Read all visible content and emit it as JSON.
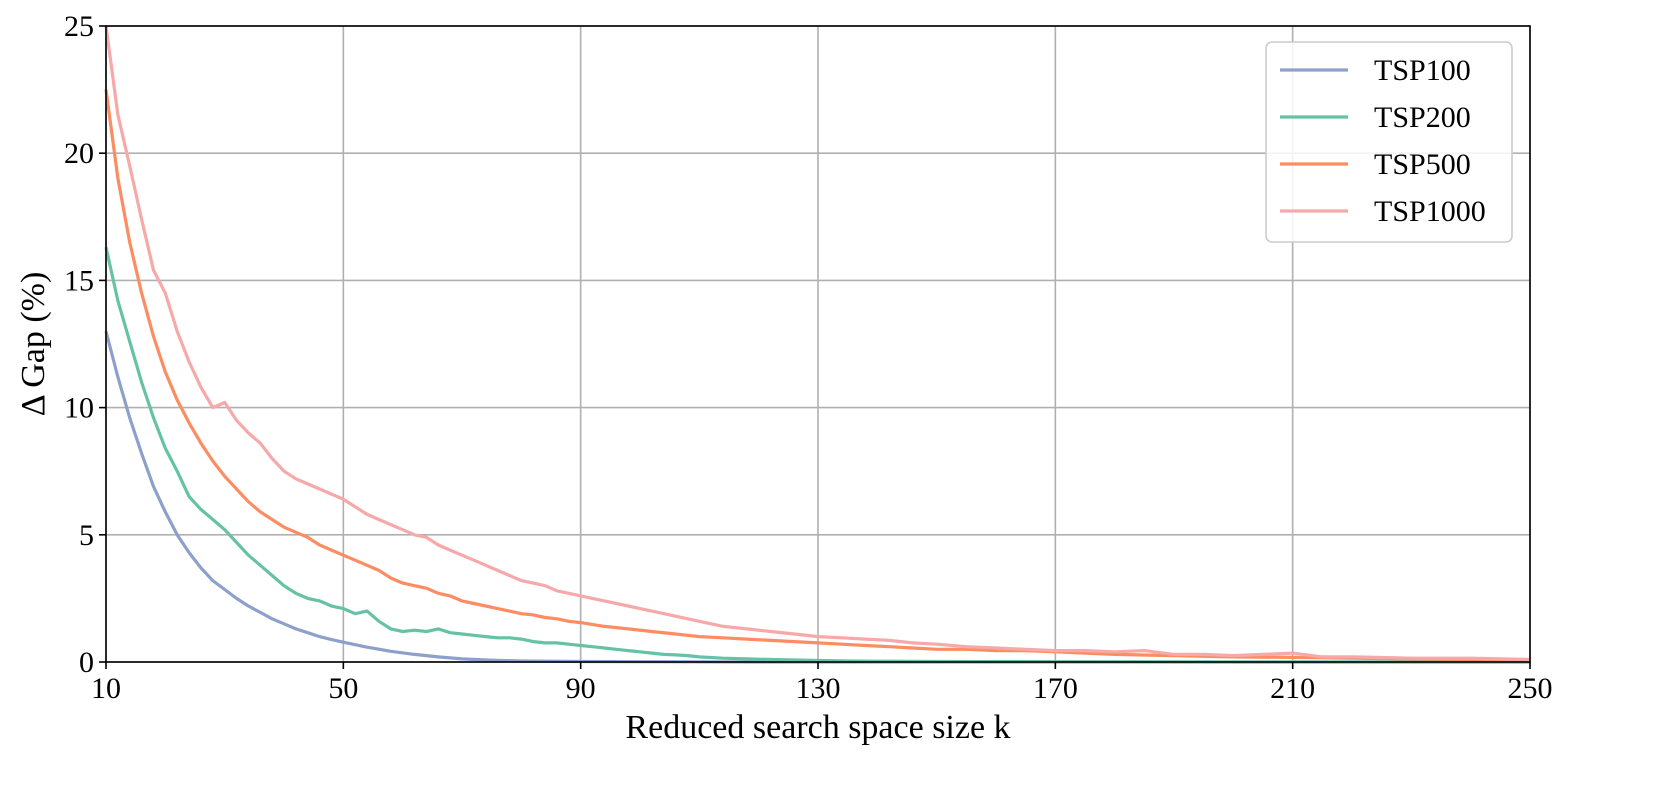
{
  "chart_data": {
    "type": "line",
    "title": "",
    "xlabel": "Reduced search space size k",
    "ylabel": "Δ Gap (%)",
    "xlim": [
      10,
      250
    ],
    "ylim": [
      0,
      25
    ],
    "xticks": [
      10,
      50,
      90,
      130,
      170,
      210,
      250
    ],
    "yticks": [
      0,
      5,
      10,
      15,
      20,
      25
    ],
    "grid": true,
    "legend_position": "top-right",
    "series": [
      {
        "name": "TSP100",
        "color": "#8da0cb",
        "x": [
          10,
          12,
          14,
          16,
          18,
          20,
          22,
          24,
          26,
          28,
          30,
          32,
          34,
          36,
          38,
          40,
          42,
          44,
          46,
          48,
          50,
          54,
          58,
          62,
          66,
          70,
          75,
          80,
          90,
          100,
          120,
          150,
          200,
          250
        ],
        "y": [
          13.0,
          11.2,
          9.6,
          8.2,
          6.9,
          5.9,
          5.0,
          4.3,
          3.7,
          3.2,
          2.85,
          2.5,
          2.2,
          1.95,
          1.7,
          1.5,
          1.3,
          1.15,
          1.0,
          0.88,
          0.78,
          0.58,
          0.42,
          0.3,
          0.2,
          0.12,
          0.07,
          0.04,
          0.02,
          0.01,
          0.0,
          0.0,
          0.0,
          0.0
        ]
      },
      {
        "name": "TSP200",
        "color": "#66c2a5",
        "x": [
          10,
          12,
          14,
          16,
          18,
          20,
          22,
          24,
          26,
          28,
          30,
          32,
          34,
          36,
          38,
          40,
          42,
          44,
          46,
          48,
          50,
          52,
          54,
          56,
          58,
          60,
          62,
          64,
          66,
          68,
          70,
          72,
          74,
          76,
          78,
          80,
          82,
          84,
          86,
          88,
          90,
          92,
          94,
          96,
          98,
          100,
          102,
          104,
          106,
          108,
          110,
          114,
          118,
          122,
          126,
          130,
          135,
          140,
          150,
          170,
          200,
          250
        ],
        "y": [
          16.3,
          14.2,
          12.6,
          11.0,
          9.6,
          8.4,
          7.5,
          6.5,
          6.0,
          5.6,
          5.2,
          4.7,
          4.2,
          3.8,
          3.4,
          3.0,
          2.7,
          2.5,
          2.4,
          2.2,
          2.1,
          1.9,
          2.0,
          1.6,
          1.3,
          1.2,
          1.25,
          1.2,
          1.3,
          1.15,
          1.1,
          1.05,
          1.0,
          0.95,
          0.95,
          0.9,
          0.8,
          0.75,
          0.75,
          0.7,
          0.65,
          0.6,
          0.55,
          0.5,
          0.45,
          0.4,
          0.35,
          0.3,
          0.28,
          0.25,
          0.2,
          0.15,
          0.12,
          0.1,
          0.08,
          0.06,
          0.04,
          0.03,
          0.02,
          0.01,
          0.0,
          0.0
        ]
      },
      {
        "name": "TSP500",
        "color": "#fc8d62",
        "x": [
          10,
          12,
          14,
          16,
          18,
          20,
          22,
          24,
          26,
          28,
          30,
          32,
          34,
          36,
          38,
          40,
          42,
          44,
          46,
          48,
          50,
          52,
          54,
          56,
          58,
          60,
          62,
          64,
          66,
          68,
          70,
          72,
          74,
          76,
          78,
          80,
          82,
          84,
          86,
          88,
          90,
          94,
          98,
          102,
          106,
          110,
          114,
          118,
          122,
          126,
          130,
          134,
          138,
          142,
          146,
          150,
          155,
          160,
          165,
          170,
          175,
          180,
          190,
          200,
          210,
          220,
          230,
          240,
          250
        ],
        "y": [
          22.5,
          19.0,
          16.5,
          14.5,
          12.8,
          11.4,
          10.3,
          9.4,
          8.6,
          7.9,
          7.3,
          6.8,
          6.3,
          5.9,
          5.6,
          5.3,
          5.1,
          4.9,
          4.6,
          4.4,
          4.2,
          4.0,
          3.8,
          3.6,
          3.3,
          3.1,
          3.0,
          2.9,
          2.7,
          2.6,
          2.4,
          2.3,
          2.2,
          2.1,
          2.0,
          1.9,
          1.85,
          1.75,
          1.7,
          1.6,
          1.55,
          1.4,
          1.3,
          1.2,
          1.1,
          1.0,
          0.95,
          0.9,
          0.85,
          0.8,
          0.75,
          0.7,
          0.65,
          0.6,
          0.55,
          0.5,
          0.5,
          0.45,
          0.45,
          0.4,
          0.35,
          0.3,
          0.25,
          0.2,
          0.18,
          0.15,
          0.12,
          0.1,
          0.05
        ]
      },
      {
        "name": "TSP1000",
        "color": "#f7a8a8",
        "x": [
          10,
          12,
          14,
          16,
          18,
          20,
          22,
          24,
          26,
          28,
          30,
          32,
          34,
          36,
          38,
          40,
          42,
          44,
          46,
          48,
          50,
          52,
          54,
          56,
          58,
          60,
          62,
          64,
          66,
          68,
          70,
          72,
          74,
          76,
          78,
          80,
          82,
          84,
          86,
          88,
          90,
          94,
          98,
          102,
          106,
          110,
          114,
          118,
          122,
          126,
          130,
          134,
          138,
          142,
          146,
          150,
          155,
          160,
          165,
          170,
          175,
          180,
          185,
          190,
          195,
          200,
          205,
          210,
          215,
          220,
          230,
          240,
          250
        ],
        "y": [
          25.0,
          21.5,
          19.5,
          17.4,
          15.4,
          14.5,
          13.0,
          11.8,
          10.8,
          10.0,
          10.2,
          9.5,
          9.0,
          8.6,
          8.0,
          7.5,
          7.2,
          7.0,
          6.8,
          6.6,
          6.4,
          6.1,
          5.8,
          5.6,
          5.4,
          5.2,
          5.0,
          4.9,
          4.6,
          4.4,
          4.2,
          4.0,
          3.8,
          3.6,
          3.4,
          3.2,
          3.1,
          3.0,
          2.8,
          2.7,
          2.6,
          2.4,
          2.2,
          2.0,
          1.8,
          1.6,
          1.4,
          1.3,
          1.2,
          1.1,
          1.0,
          0.95,
          0.9,
          0.85,
          0.75,
          0.7,
          0.6,
          0.55,
          0.5,
          0.45,
          0.45,
          0.4,
          0.45,
          0.3,
          0.3,
          0.25,
          0.3,
          0.35,
          0.2,
          0.2,
          0.15,
          0.15,
          0.1
        ]
      }
    ]
  }
}
